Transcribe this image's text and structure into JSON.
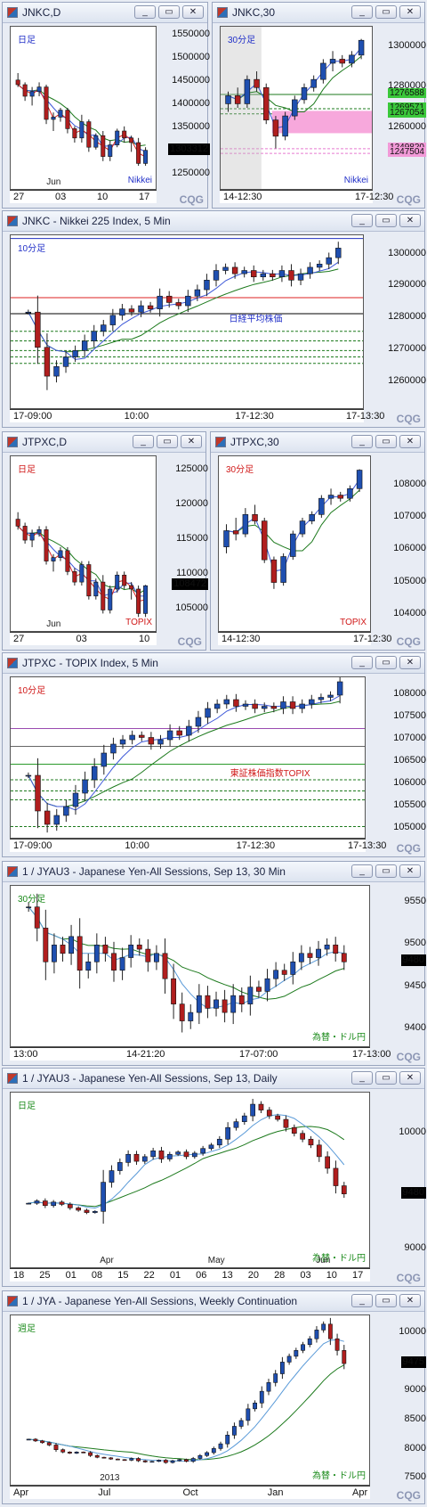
{
  "colors": {
    "up": "#1f4fb0",
    "down": "#b01e1e",
    "maSlow": "#1d7a1d",
    "maFast": "#3d58d8",
    "red": "#d22",
    "pink": "#e87ad0"
  },
  "windows": [
    {
      "id": "w1",
      "title": "JNKC,D",
      "period": "日足",
      "pcolor": "#2230c8",
      "inst": "Nikkei",
      "icolor": "#2230c8",
      "price": "1303312",
      "yticks": [
        "1550000",
        "1500000",
        "1450000",
        "1400000",
        "1350000",
        "1303312",
        "1250000"
      ],
      "xticks": [
        "27",
        "03",
        "10",
        "17"
      ],
      "xsub": [
        "Jun"
      ]
    },
    {
      "id": "w2",
      "title": "JNKC,30",
      "period": "30分足",
      "pcolor": "#2230c8",
      "inst": "Nikkei",
      "icolor": "#2230c8",
      "price": "1303312",
      "yticks": [
        "1300000",
        "1280000",
        "1260000"
      ],
      "levels": [
        "1276588",
        "1269571",
        "1267054",
        "1249820",
        "1247504"
      ],
      "xticks": [
        "14-12:30",
        "17-12:30"
      ]
    },
    {
      "id": "w3",
      "title": "JNKC - Nikkei 225 Index, 5 Min",
      "period": "10分足",
      "pcolor": "#2230c8",
      "inst": "日経平均株価",
      "icolor": "#2230c8",
      "yticks": [
        "1300000",
        "1290000",
        "1280000",
        "1270000",
        "1260000"
      ],
      "xticks": [
        "17-09:00",
        "10:00",
        "17-12:30",
        "17-13:30"
      ]
    },
    {
      "id": "w4",
      "title": "JTPXC,D",
      "period": "日足",
      "pcolor": "#d01818",
      "inst": "TOPIX",
      "icolor": "#d01818",
      "price": "108472",
      "yticks": [
        "125000",
        "120000",
        "115000",
        "110000",
        "108472",
        "105000"
      ],
      "xticks": [
        "27",
        "03",
        "10"
      ],
      "xsub": [
        "Jun"
      ]
    },
    {
      "id": "w5",
      "title": "JTPXC,30",
      "period": "30分足",
      "pcolor": "#d01818",
      "inst": "TOPIX",
      "icolor": "#d01818",
      "price": "108472",
      "yticks": [
        "108000",
        "107000",
        "106000",
        "105000",
        "104000"
      ],
      "xticks": [
        "14-12:30",
        "17-12:30"
      ]
    },
    {
      "id": "w6",
      "title": "JTPXC - TOPIX Index, 5 Min",
      "period": "10分足",
      "pcolor": "#d01818",
      "inst": "東証株価指数TOPIX",
      "icolor": "#d01818",
      "yticks": [
        "108000",
        "107500",
        "107000",
        "106500",
        "106000",
        "105500",
        "105000"
      ],
      "xticks": [
        "17-09:00",
        "10:00",
        "17-12:30",
        "17-13:30"
      ]
    },
    {
      "id": "w7",
      "title": "1 / JYAU3 - Japanese Yen-All Sessions, Sep 13, 30 Min",
      "period": "30分足",
      "pcolor": "#1a8a1a",
      "inst": "為替・ドル円",
      "icolor": "#1a8a1a",
      "price": "9480",
      "yticks": [
        "9550",
        "9500",
        "9480",
        "9450",
        "9400"
      ],
      "xticks": [
        "13:00",
        "14-21:20",
        "17-07:00",
        "17-13:00"
      ]
    },
    {
      "id": "w8",
      "title": "1 / JYAU3 - Japanese Yen-All Sessions, Sep 13, Daily",
      "period": "日足",
      "pcolor": "#1a8a1a",
      "inst": "為替・ドル円",
      "icolor": "#1a8a1a",
      "price": "9480",
      "yticks": [
        "10000",
        "9480",
        "9000"
      ],
      "xticks": [
        "18",
        "25",
        "01",
        "08",
        "15",
        "22",
        "01",
        "06",
        "13",
        "20",
        "28",
        "03",
        "10",
        "17"
      ],
      "xsub": [
        "Apr",
        "May",
        "Jun"
      ]
    },
    {
      "id": "w9",
      "title": "1 / JYA - Japanese Yen-All Sessions, Weekly Continuation",
      "period": "週足",
      "pcolor": "#1a8a1a",
      "inst": "為替・ドル円",
      "icolor": "#1a8a1a",
      "price": "9475",
      "yticks": [
        "10000",
        "9475",
        "9000",
        "8500",
        "8000",
        "7500"
      ],
      "xticks": [
        "Apr",
        "Jul",
        "Oct",
        "Jan",
        "Apr"
      ],
      "xsub": [
        "2013"
      ]
    }
  ],
  "window_buttons": [
    "_",
    "▭",
    "✕"
  ],
  "brand": "CQG",
  "chart_data": [
    {
      "type": "candlestick",
      "title": "JNKC,D",
      "ylim": [
        1220000,
        1570000
      ],
      "ohlc": [
        [
          1455000,
          1470000,
          1440000,
          1445000
        ],
        [
          1445000,
          1450000,
          1410000,
          1420000
        ],
        [
          1420000,
          1440000,
          1400000,
          1430000
        ],
        [
          1430000,
          1450000,
          1420000,
          1440000
        ],
        [
          1440000,
          1445000,
          1360000,
          1370000
        ],
        [
          1370000,
          1385000,
          1345000,
          1375000
        ],
        [
          1375000,
          1395000,
          1365000,
          1390000
        ],
        [
          1390000,
          1395000,
          1340000,
          1350000
        ],
        [
          1350000,
          1355000,
          1320000,
          1330000
        ],
        [
          1330000,
          1380000,
          1320000,
          1365000
        ],
        [
          1365000,
          1370000,
          1300000,
          1310000
        ],
        [
          1310000,
          1340000,
          1305000,
          1335000
        ],
        [
          1335000,
          1345000,
          1280000,
          1290000
        ],
        [
          1290000,
          1325000,
          1280000,
          1315000
        ],
        [
          1315000,
          1350000,
          1310000,
          1345000
        ],
        [
          1345000,
          1355000,
          1320000,
          1330000
        ],
        [
          1330000,
          1335000,
          1300000,
          1320000
        ],
        [
          1320000,
          1330000,
          1270000,
          1275000
        ],
        [
          1275000,
          1310000,
          1270000,
          1303312
        ]
      ]
    },
    {
      "type": "candlestick",
      "title": "JNKC,30",
      "ylim": [
        1230000,
        1310000
      ],
      "ohlc": [
        [
          1272000,
          1278000,
          1268000,
          1276000
        ],
        [
          1276000,
          1280000,
          1270000,
          1272000
        ],
        [
          1272000,
          1286000,
          1270000,
          1284000
        ],
        [
          1284000,
          1288000,
          1278000,
          1280000
        ],
        [
          1280000,
          1282000,
          1262000,
          1264000
        ],
        [
          1264000,
          1266000,
          1250000,
          1256000
        ],
        [
          1256000,
          1268000,
          1254000,
          1266000
        ],
        [
          1266000,
          1276000,
          1264000,
          1274000
        ],
        [
          1274000,
          1282000,
          1272000,
          1280000
        ],
        [
          1280000,
          1286000,
          1278000,
          1284000
        ],
        [
          1284000,
          1294000,
          1282000,
          1292000
        ],
        [
          1292000,
          1298000,
          1288000,
          1294000
        ],
        [
          1294000,
          1296000,
          1290000,
          1292000
        ],
        [
          1292000,
          1298000,
          1290000,
          1296000
        ],
        [
          1296000,
          1304000,
          1294000,
          1303312
        ]
      ],
      "levels": [
        1276588,
        1269571,
        1267054,
        1249820,
        1247504
      ]
    },
    {
      "type": "candlestick",
      "title": "JNKC - Nikkei 225 Index, 5 Min",
      "ylim": [
        1252000,
        1306000
      ],
      "close": [
        1282000,
        1271000,
        1262000,
        1265000,
        1268000,
        1270000,
        1273000,
        1276000,
        1278000,
        1281000,
        1283000,
        1282000,
        1284000,
        1283000,
        1287000,
        1285000,
        1284000,
        1287000,
        1289000,
        1292000,
        1295000,
        1296000,
        1294000,
        1295000,
        1293000,
        1294000,
        1293000,
        1295000,
        1292000,
        1294000,
        1296000,
        1297000,
        1299000,
        1302000
      ]
    },
    {
      "type": "candlestick",
      "title": "JTPXC,D",
      "ylim": [
        102000,
        127000
      ],
      "ohlc": [
        [
          118000,
          119000,
          116500,
          117000
        ],
        [
          117000,
          117500,
          114500,
          115000
        ],
        [
          115000,
          116500,
          114000,
          116000
        ],
        [
          116000,
          117000,
          115500,
          116500
        ],
        [
          116500,
          117000,
          111500,
          112000
        ],
        [
          112000,
          113000,
          110500,
          112500
        ],
        [
          112500,
          114000,
          112000,
          113500
        ],
        [
          113500,
          114000,
          110000,
          110500
        ],
        [
          110500,
          111000,
          108500,
          109000
        ],
        [
          109000,
          112000,
          108500,
          111500
        ],
        [
          111500,
          112000,
          106500,
          107000
        ],
        [
          107000,
          109500,
          106500,
          109000
        ],
        [
          109000,
          110000,
          104500,
          105000
        ],
        [
          105000,
          108500,
          104500,
          108000
        ],
        [
          108000,
          110500,
          107500,
          110000
        ],
        [
          110000,
          110500,
          108000,
          108500
        ],
        [
          108500,
          109000,
          106500,
          108000
        ],
        [
          108000,
          108500,
          104000,
          104500
        ],
        [
          104500,
          108600,
          104000,
          108472
        ]
      ]
    },
    {
      "type": "candlestick",
      "title": "JTPXC,30",
      "ylim": [
        103500,
        108900
      ],
      "ohlc": [
        [
          106100,
          106800,
          105900,
          106600
        ],
        [
          106600,
          107000,
          106300,
          106500
        ],
        [
          106500,
          107300,
          106400,
          107100
        ],
        [
          107100,
          107400,
          106800,
          106900
        ],
        [
          106900,
          107000,
          105600,
          105700
        ],
        [
          105700,
          105800,
          104800,
          105000
        ],
        [
          105000,
          105900,
          104900,
          105800
        ],
        [
          105800,
          106600,
          105700,
          106500
        ],
        [
          106500,
          107000,
          106400,
          106900
        ],
        [
          106900,
          107200,
          106800,
          107100
        ],
        [
          107100,
          107700,
          107000,
          107600
        ],
        [
          107600,
          107900,
          107400,
          107700
        ],
        [
          107700,
          107800,
          107500,
          107600
        ],
        [
          107600,
          108000,
          107500,
          107900
        ],
        [
          107900,
          108500,
          107800,
          108472
        ]
      ]
    },
    {
      "type": "candlestick",
      "title": "JTPXC - TOPIX Index, 5 Min",
      "ylim": [
        104800,
        108400
      ],
      "close": [
        106200,
        105400,
        105100,
        105300,
        105500,
        105800,
        106100,
        106400,
        106700,
        106900,
        107000,
        107100,
        107050,
        106900,
        107000,
        107200,
        107100,
        107300,
        107500,
        107700,
        107800,
        107900,
        107750,
        107800,
        107700,
        107750,
        107700,
        107850,
        107700,
        107800,
        107900,
        107950,
        108000,
        108300
      ]
    },
    {
      "type": "candlestick",
      "title": "1 / JYAU3 - Japanese Yen-All Sessions, Sep 13, 30 Min",
      "ylim": [
        9380,
        9570
      ],
      "close": [
        9545,
        9520,
        9480,
        9500,
        9490,
        9510,
        9470,
        9480,
        9500,
        9490,
        9470,
        9485,
        9500,
        9495,
        9480,
        9490,
        9460,
        9430,
        9410,
        9420,
        9440,
        9425,
        9435,
        9420,
        9440,
        9430,
        9450,
        9445,
        9460,
        9470,
        9465,
        9480,
        9490,
        9485,
        9495,
        9500,
        9490,
        9480
      ]
    },
    {
      "type": "candlestick",
      "title": "1 / JYAU3 - Japanese Yen-All Sessions, Sep 13, Daily",
      "ylim": [
        8850,
        10350
      ],
      "close": [
        9400,
        9420,
        9380,
        9410,
        9390,
        9360,
        9340,
        9320,
        9330,
        9580,
        9680,
        9750,
        9820,
        9760,
        9800,
        9850,
        9780,
        9820,
        9840,
        9800,
        9830,
        9870,
        9900,
        9950,
        10050,
        10100,
        10150,
        10250,
        10200,
        10150,
        10120,
        10050,
        10000,
        9950,
        9900,
        9800,
        9700,
        9550,
        9480
      ]
    },
    {
      "type": "candlestick",
      "title": "1 / JYA - Japanese Yen-All Sessions, Weekly Continuation",
      "ylim": [
        7400,
        10300
      ],
      "close": [
        8180,
        8150,
        8120,
        8080,
        8000,
        7960,
        7940,
        7960,
        7950,
        7900,
        7870,
        7860,
        7840,
        7830,
        7820,
        7850,
        7810,
        7790,
        7800,
        7820,
        7780,
        7810,
        7830,
        7800,
        7850,
        7900,
        7950,
        8020,
        8100,
        8250,
        8400,
        8500,
        8700,
        8800,
        9000,
        9150,
        9300,
        9500,
        9600,
        9700,
        9800,
        9900,
        10050,
        10150,
        9900,
        9700,
        9475
      ]
    }
  ]
}
